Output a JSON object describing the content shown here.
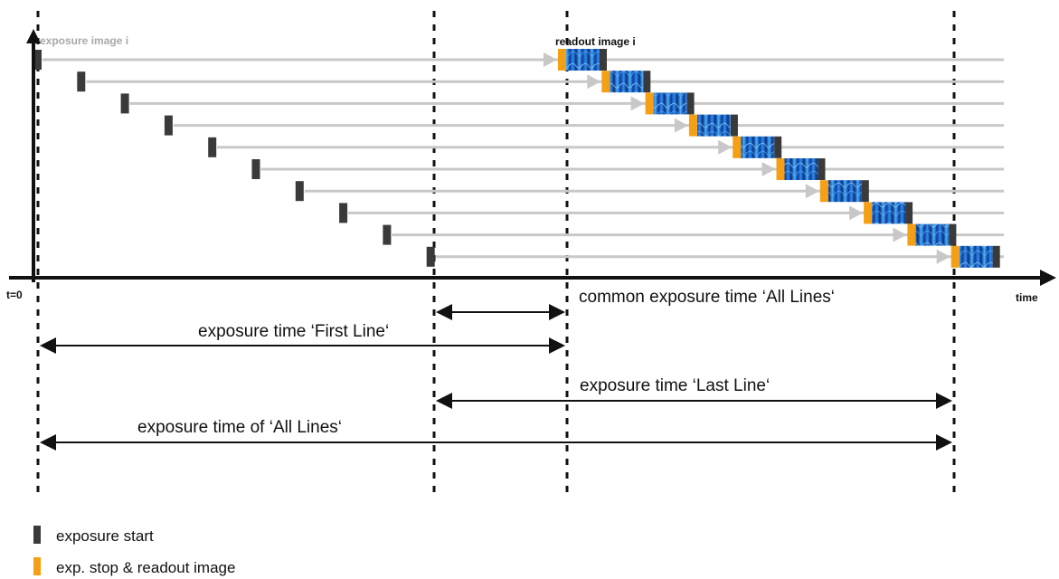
{
  "labels": {
    "exposure_image": "exposure image i",
    "readout_image": "readout image i",
    "t0": "t=0",
    "time": "time"
  },
  "spans": {
    "common": "common exposure time ‘All Lines‘",
    "first_line": "exposure time ‘First Line‘",
    "last_line": "exposure time ‘Last Line‘",
    "all_lines": "exposure time of ‘All Lines‘"
  },
  "legend": {
    "start": "exposure start",
    "stop": "exp. stop & readout image"
  },
  "line_count": 10,
  "colors": {
    "start_marker": "#3a3a3a",
    "stop_marker": "#f5a014",
    "timeline": "#c8c8c8",
    "readout_dark": "#0a2e7a",
    "readout_light": "#3ea4ff",
    "axis": "#111111",
    "exposure_label": "#a8a8a8"
  }
}
